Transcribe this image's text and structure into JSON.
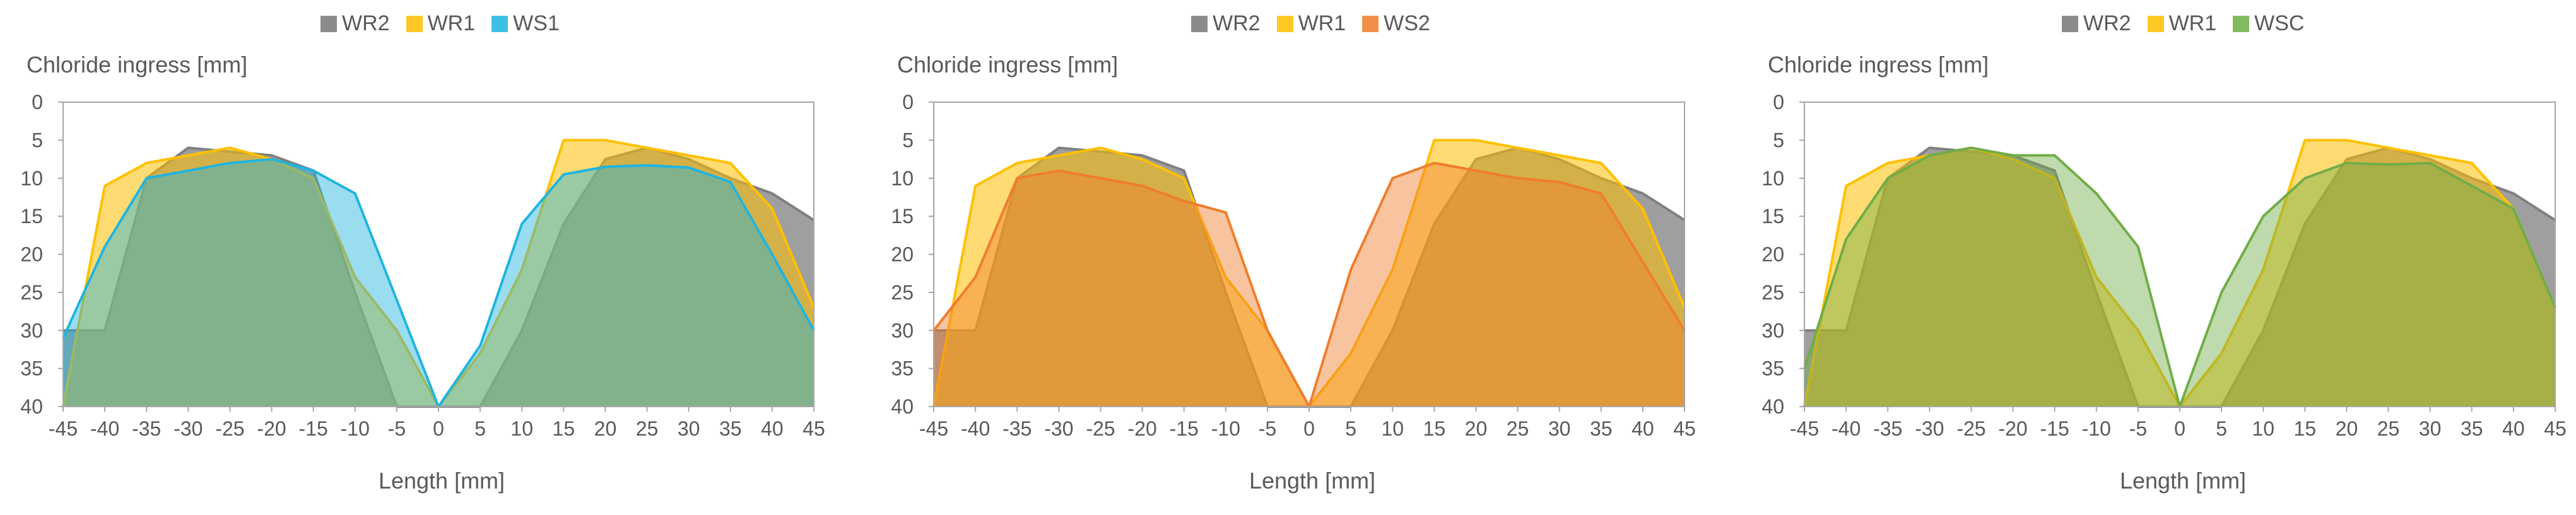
{
  "colors": {
    "WR2": "#7f7f7f",
    "WR1": "#ffc000",
    "WS1": "#1fb4e0",
    "WS2": "#f07d2c",
    "WSC": "#70ad47"
  },
  "chart_data": [
    {
      "type": "area",
      "ylabel": "Chloride ingress [mm]",
      "xlabel": "Length [mm]",
      "xlim": [
        -45,
        45
      ],
      "ylim": [
        0,
        40
      ],
      "y_reversed": true,
      "grid": false,
      "legend_position": "top",
      "x_ticks": [
        -45,
        -40,
        -35,
        -30,
        -25,
        -20,
        -15,
        -10,
        -5,
        0,
        5,
        10,
        15,
        20,
        25,
        30,
        35,
        40,
        45
      ],
      "y_ticks": [
        0,
        5,
        10,
        15,
        20,
        25,
        30,
        35,
        40
      ],
      "series": [
        {
          "name": "WR2",
          "color": "WR2",
          "x": [
            -45,
            -44,
            -40,
            -35,
            -30,
            -25,
            -20,
            -15,
            -10,
            -5,
            0,
            5,
            10,
            15,
            20,
            25,
            30,
            35,
            40,
            45
          ],
          "y": [
            30,
            30,
            30,
            10,
            6,
            6.5,
            7,
            9,
            25,
            40,
            40,
            40,
            30,
            16,
            7.5,
            6,
            7.5,
            10,
            12,
            15.5
          ]
        },
        {
          "name": "WR1",
          "color": "WR1",
          "x": [
            -45,
            -40,
            -35,
            -30,
            -25,
            -20,
            -15,
            -10,
            -5,
            0,
            5,
            10,
            15,
            20,
            25,
            30,
            35,
            40,
            45
          ],
          "y": [
            40,
            11,
            8,
            7,
            6,
            7.5,
            10,
            23,
            30,
            40,
            33,
            22,
            5,
            5,
            6,
            7,
            8,
            14,
            27
          ]
        },
        {
          "name": "WS1",
          "color": "WS1",
          "x": [
            -45,
            -40,
            -35,
            -30,
            -25,
            -20,
            -15,
            -10,
            -5,
            0,
            5,
            10,
            15,
            20,
            25,
            30,
            35,
            40,
            45
          ],
          "y": [
            31,
            19,
            10,
            9,
            8,
            7.5,
            9,
            12,
            26,
            40,
            32,
            16,
            9.5,
            8.5,
            8.3,
            8.6,
            10.5,
            20,
            30
          ]
        }
      ]
    },
    {
      "type": "area",
      "ylabel": "Chloride ingress [mm]",
      "xlabel": "Length [mm]",
      "xlim": [
        -45,
        45
      ],
      "ylim": [
        0,
        40
      ],
      "y_reversed": true,
      "grid": false,
      "legend_position": "top",
      "x_ticks": [
        -45,
        -40,
        -35,
        -30,
        -25,
        -20,
        -15,
        -10,
        -5,
        0,
        5,
        10,
        15,
        20,
        25,
        30,
        35,
        40,
        45
      ],
      "y_ticks": [
        0,
        5,
        10,
        15,
        20,
        25,
        30,
        35,
        40
      ],
      "series": [
        {
          "name": "WR2",
          "color": "WR2",
          "x": [
            -45,
            -44,
            -40,
            -35,
            -30,
            -25,
            -20,
            -15,
            -10,
            -5,
            0,
            5,
            10,
            15,
            20,
            25,
            30,
            35,
            40,
            45
          ],
          "y": [
            30,
            30,
            30,
            10,
            6,
            6.5,
            7,
            9,
            25,
            40,
            40,
            40,
            30,
            16,
            7.5,
            6,
            7.5,
            10,
            12,
            15.5
          ]
        },
        {
          "name": "WR1",
          "color": "WR1",
          "x": [
            -45,
            -40,
            -35,
            -30,
            -25,
            -20,
            -15,
            -10,
            -5,
            0,
            5,
            10,
            15,
            20,
            25,
            30,
            35,
            40,
            45
          ],
          "y": [
            40,
            11,
            8,
            7,
            6,
            7.5,
            10,
            23,
            30,
            40,
            33,
            22,
            5,
            5,
            6,
            7,
            8,
            14,
            27
          ]
        },
        {
          "name": "WS2",
          "color": "WS2",
          "x": [
            -45,
            -40,
            -35,
            -30,
            -25,
            -20,
            -15,
            -10,
            -5,
            0,
            5,
            10,
            15,
            20,
            25,
            30,
            35,
            40,
            45
          ],
          "y": [
            30,
            23,
            10,
            9,
            10,
            11,
            13,
            14.5,
            30,
            40,
            22,
            10,
            8,
            9,
            10,
            10.5,
            12,
            21,
            30
          ]
        }
      ]
    },
    {
      "type": "area",
      "ylabel": "Chloride ingress [mm]",
      "xlabel": "Length [mm]",
      "xlim": [
        -45,
        45
      ],
      "ylim": [
        0,
        40
      ],
      "y_reversed": true,
      "grid": false,
      "legend_position": "top",
      "x_ticks": [
        -45,
        -40,
        -35,
        -30,
        -25,
        -20,
        -15,
        -10,
        -5,
        0,
        5,
        10,
        15,
        20,
        25,
        30,
        35,
        40,
        45
      ],
      "y_ticks": [
        0,
        5,
        10,
        15,
        20,
        25,
        30,
        35,
        40
      ],
      "series": [
        {
          "name": "WR2",
          "color": "WR2",
          "x": [
            -45,
            -44,
            -40,
            -35,
            -30,
            -25,
            -20,
            -15,
            -10,
            -5,
            0,
            5,
            10,
            15,
            20,
            25,
            30,
            35,
            40,
            45
          ],
          "y": [
            30,
            30,
            30,
            10,
            6,
            6.5,
            7,
            9,
            25,
            40,
            40,
            40,
            30,
            16,
            7.5,
            6,
            7.5,
            10,
            12,
            15.5
          ]
        },
        {
          "name": "WR1",
          "color": "WR1",
          "x": [
            -45,
            -40,
            -35,
            -30,
            -25,
            -20,
            -15,
            -10,
            -5,
            0,
            5,
            10,
            15,
            20,
            25,
            30,
            35,
            40,
            45
          ],
          "y": [
            40,
            11,
            8,
            7,
            6,
            7.5,
            10,
            23,
            30,
            40,
            33,
            22,
            5,
            5,
            6,
            7,
            8,
            14,
            27
          ]
        },
        {
          "name": "WSC",
          "color": "WSC",
          "x": [
            -45,
            -40,
            -35,
            -30,
            -25,
            -20,
            -15,
            -10,
            -5,
            0,
            5,
            10,
            15,
            20,
            25,
            30,
            35,
            40,
            45
          ],
          "y": [
            35,
            18,
            10,
            7,
            6,
            7,
            7,
            12,
            19,
            40,
            25,
            15,
            10,
            8,
            8.2,
            8,
            11,
            14,
            27
          ]
        }
      ]
    }
  ]
}
